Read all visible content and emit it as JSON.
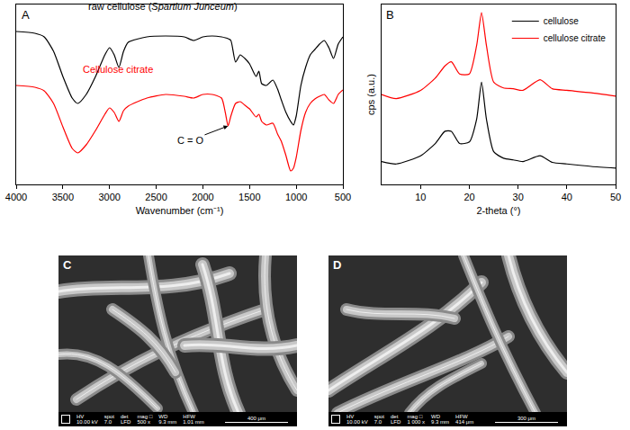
{
  "chart_data": [
    {
      "type": "line",
      "letter": "A",
      "x_label": "Wavenumber (cm⁻¹)",
      "x": [
        4000,
        3800,
        3700,
        3600,
        3500,
        3400,
        3340,
        3250,
        3150,
        3050,
        3000,
        2950,
        2900,
        2850,
        2800,
        2600,
        2400,
        2200,
        2100,
        2000,
        1900,
        1800,
        1760,
        1730,
        1700,
        1650,
        1600,
        1550,
        1500,
        1430,
        1400,
        1370,
        1320,
        1250,
        1200,
        1160,
        1110,
        1060,
        1030,
        1000,
        950,
        900,
        850,
        800,
        750,
        700,
        650,
        600,
        550,
        500
      ],
      "series": [
        {
          "name": "raw cellulose (Spartium Junceum)",
          "color": "#000000",
          "values": [
            85,
            84,
            82,
            74,
            60,
            48,
            45,
            50,
            60,
            72,
            76,
            72,
            65,
            74,
            79,
            82,
            82.5,
            82,
            80,
            82,
            82.5,
            82,
            81.5,
            81,
            80,
            68,
            72,
            70,
            67,
            60,
            63,
            56,
            55,
            58,
            53,
            47,
            40,
            35,
            33,
            38,
            55,
            65,
            72,
            75,
            78,
            80,
            76,
            70,
            78,
            82
          ]
        },
        {
          "name": "Cellulose citrate",
          "color": "#ff0000",
          "values": [
            55,
            54,
            52,
            45,
            32,
            20,
            17.5,
            22,
            30,
            39,
            42.5,
            40,
            35,
            41,
            43.5,
            48,
            50,
            49,
            48,
            50,
            50,
            48,
            40,
            32.5,
            38,
            45,
            46,
            44,
            42,
            37.5,
            39,
            35,
            33,
            34,
            28,
            24,
            16,
            7.5,
            9,
            15,
            30,
            40,
            45,
            47.5,
            49,
            50,
            47,
            45,
            50,
            52.5
          ]
        }
      ],
      "xlim": [
        4000,
        500
      ],
      "xticks": [
        4000,
        3500,
        3000,
        2500,
        2000,
        1500,
        1000,
        500
      ],
      "ylim": [
        0,
        100
      ],
      "tick_labels": "x",
      "annotations": [
        {
          "text": "C = O",
          "x": 1730,
          "y": 32.5
        }
      ]
    },
    {
      "type": "line",
      "letter": "B",
      "x_label": "2-theta (°)",
      "y_label": "cps (a.u.)",
      "x": [
        2,
        5,
        10,
        13,
        15,
        16.3,
        18,
        20,
        21.5,
        22.5,
        23.5,
        25,
        27,
        29,
        31,
        34.5,
        37,
        40,
        45,
        50
      ],
      "series": [
        {
          "name": "cellulose",
          "color": "#000000",
          "values": [
            28,
            25,
            35,
            50,
            65,
            65,
            50,
            52,
            80,
            125,
            80,
            40,
            32,
            30,
            28,
            35,
            27,
            25,
            22,
            20
          ]
        },
        {
          "name": "cellulose citrate",
          "color": "#ff0000",
          "values": [
            110,
            105,
            115,
            130,
            145,
            150,
            135,
            135,
            170,
            210,
            170,
            125,
            118,
            117,
            115,
            128,
            117,
            115,
            112,
            108
          ]
        }
      ],
      "xlim": [
        2,
        50
      ],
      "xticks": [
        10,
        20,
        30,
        40,
        50
      ],
      "ylim": [
        0,
        220
      ],
      "tick_labels": "x",
      "legend": "top-right"
    }
  ],
  "images": [
    {
      "letter": "C",
      "info": [
        {
          "label": "HV",
          "value": "10.00 kV"
        },
        {
          "label": "spot",
          "value": "7.0"
        },
        {
          "label": "det",
          "value": "LFD"
        },
        {
          "label": "mag □",
          "value": "500 x"
        },
        {
          "label": "WD",
          "value": "9.3 mm"
        },
        {
          "label": "HFW",
          "value": "1.01 mm"
        }
      ],
      "scale_bar": "400 μm"
    },
    {
      "letter": "D",
      "info": [
        {
          "label": "HV",
          "value": "10.00 kV"
        },
        {
          "label": "spot",
          "value": "7.0"
        },
        {
          "label": "det",
          "value": "LFD"
        },
        {
          "label": "mag □",
          "value": "1 000 x"
        },
        {
          "label": "WD",
          "value": "9.3 mm"
        },
        {
          "label": "HFW",
          "value": "414 μm"
        }
      ],
      "scale_bar": "300 μm"
    }
  ]
}
